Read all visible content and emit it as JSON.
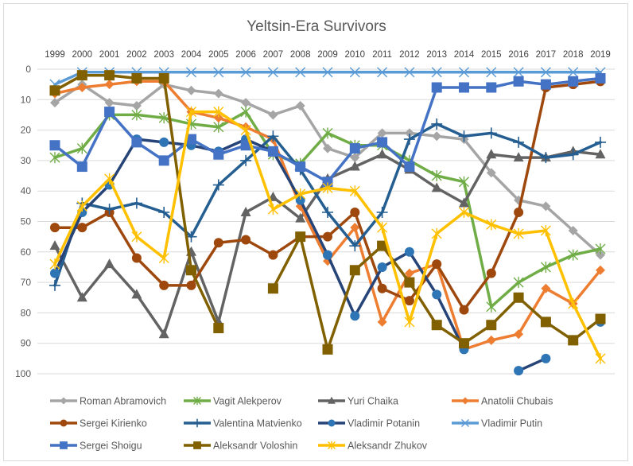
{
  "chart_data": {
    "type": "line",
    "title": "Yeltsin-Era Survivors",
    "xlabel": "",
    "ylabel": "",
    "ylim": [
      0,
      100
    ],
    "y_reversed": true,
    "y_ticks": [
      0,
      10,
      20,
      30,
      40,
      50,
      60,
      70,
      80,
      90,
      100
    ],
    "x_axis_position": "top",
    "grid": true,
    "legend_position": "bottom",
    "categories": [
      "1999",
      "2000",
      "2001",
      "2002",
      "2003",
      "2004",
      "2005",
      "2006",
      "2007",
      "2008",
      "2009",
      "2010",
      "2011",
      "2012",
      "2013",
      "2014",
      "2015",
      "2016",
      "2017",
      "2018",
      "2019"
    ],
    "series": [
      {
        "name": "Roman Abramovich",
        "color": "#a5a5a5",
        "marker": "diamond",
        "values": [
          11,
          5,
          11,
          12,
          5,
          7,
          8,
          11,
          15,
          12,
          26,
          29,
          21,
          21,
          22,
          23,
          34,
          43,
          45,
          53,
          61
        ]
      },
      {
        "name": "Vagit Alekperov",
        "color": "#70ad47",
        "marker": "star",
        "values": [
          29,
          26,
          15,
          15,
          16,
          18,
          19,
          14,
          28,
          31,
          21,
          25,
          25,
          30,
          35,
          37,
          78,
          70,
          65,
          61,
          59
        ]
      },
      {
        "name": "Yuri Chaika",
        "color": "#636363",
        "marker": "triangle",
        "values": [
          58,
          75,
          64,
          74,
          87,
          60,
          83,
          47,
          42,
          49,
          36,
          32,
          28,
          33,
          39,
          44,
          28,
          29,
          29,
          27,
          28
        ]
      },
      {
        "name": "Anatolii Chubais",
        "color": "#ed7d31",
        "marker": "diamond",
        "values": [
          8,
          6,
          5,
          4,
          4,
          14,
          16,
          19,
          23,
          45,
          63,
          52,
          83,
          67,
          64,
          92,
          89,
          87,
          72,
          77,
          66
        ]
      },
      {
        "name": "Sergei Kirienko",
        "color": "#9e480e",
        "marker": "circle",
        "values": [
          52,
          52,
          47,
          62,
          71,
          71,
          57,
          56,
          61,
          55,
          55,
          47,
          72,
          76,
          64,
          79,
          67,
          47,
          6,
          5,
          4
        ]
      },
      {
        "name": "Valentina Matvienko",
        "color": "#255e91",
        "marker": "plus",
        "values": [
          71,
          44,
          46,
          44,
          47,
          55,
          38,
          30,
          22,
          33,
          47,
          58,
          47,
          23,
          18,
          22,
          21,
          24,
          29,
          28,
          24
        ]
      },
      {
        "name": "Vladimir Potanin",
        "color": "#264478",
        "marker": "circle-blue",
        "values": [
          67,
          47,
          38,
          23,
          24,
          25,
          27,
          23,
          27,
          43,
          61,
          81,
          65,
          60,
          74,
          92,
          null,
          99,
          95,
          null,
          83
        ]
      },
      {
        "name": "Vladimir Putin",
        "color": "#5b9bd5",
        "marker": "x",
        "values": [
          5,
          1,
          1,
          1,
          1,
          1,
          1,
          1,
          1,
          1,
          1,
          1,
          1,
          1,
          1,
          1,
          1,
          1,
          1,
          1,
          1
        ]
      },
      {
        "name": "Sergei Shoigu",
        "color": "#4472c4",
        "marker": "square",
        "values": [
          25,
          32,
          14,
          24,
          30,
          23,
          28,
          25,
          27,
          32,
          37,
          26,
          24,
          32,
          6,
          6,
          6,
          4,
          5,
          4,
          3
        ]
      },
      {
        "name": "Aleksandr Voloshin",
        "color": "#806000",
        "marker": "square",
        "values": [
          7,
          2,
          2,
          3,
          3,
          66,
          85,
          null,
          72,
          55,
          92,
          66,
          58,
          70,
          84,
          90,
          84,
          75,
          83,
          89,
          82
        ]
      },
      {
        "name": "Aleksandr Zhukov",
        "color": "#ffc000",
        "marker": "star",
        "values": [
          64,
          45,
          36,
          55,
          62,
          14,
          14,
          20,
          46,
          41,
          39,
          40,
          52,
          83,
          54,
          47,
          51,
          54,
          53,
          77,
          95
        ]
      }
    ]
  }
}
